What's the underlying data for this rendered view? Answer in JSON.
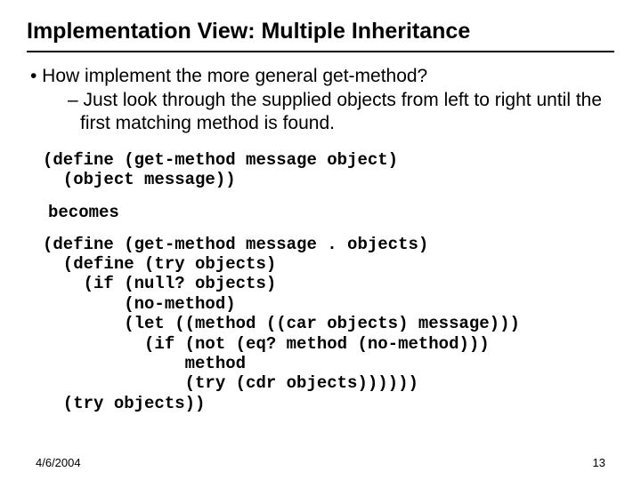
{
  "title": "Implementation View: Multiple Inheritance",
  "bullet1": "• How implement the more general get-method?",
  "bullet2": "– Just look through the supplied objects from left to right until the first matching method is found.",
  "code1": "(define (get-method message object)\n  (object message))",
  "becomes": "becomes",
  "code2": "(define (get-method message . objects)\n  (define (try objects)\n    (if (null? objects)\n        (no-method)\n        (let ((method ((car objects) message)))\n          (if (not (eq? method (no-method)))\n              method\n              (try (cdr objects))))))\n  (try objects))",
  "footer_date": "4/6/2004",
  "footer_page": "13"
}
